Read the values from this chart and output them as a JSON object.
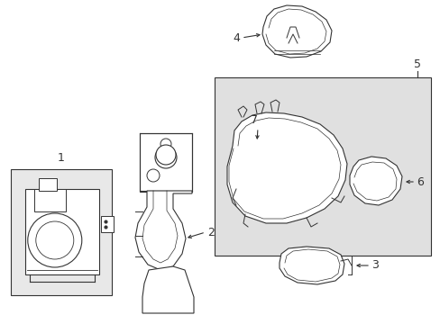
{
  "background_color": "#ffffff",
  "line_color": "#333333",
  "box1_fill": "#e8e8e8",
  "box2_fill": "#e0e0e0",
  "font_size": 8,
  "lw": 0.8
}
